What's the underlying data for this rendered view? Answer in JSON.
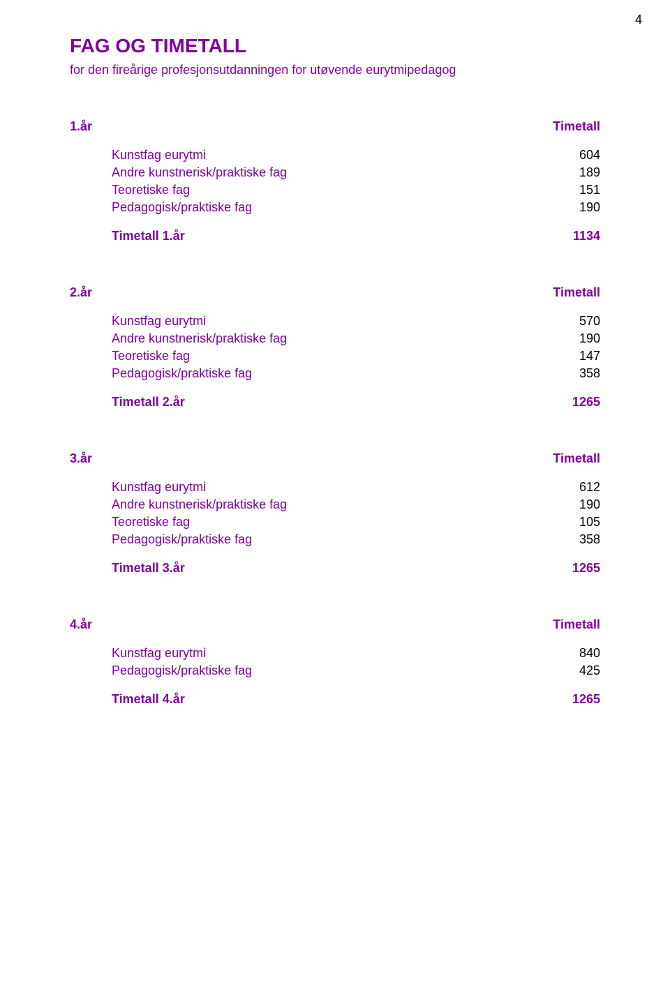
{
  "page_number": "4",
  "title": "FAG OG TIMETALL",
  "subtitle": "for den fireårige profesjonsutdanningen for utøvende eurytmipedagog",
  "colors": {
    "heading": "#8000a0",
    "label": "#8000a0",
    "value": "#000000",
    "background": "#ffffff"
  },
  "typography": {
    "title_fontsize": 28,
    "subtitle_fontsize": 18,
    "body_fontsize": 18,
    "font_family": "Arial"
  },
  "sections": [
    {
      "year_label": "1.år",
      "year_value": "Timetall",
      "items": [
        {
          "label": "Kunstfag eurytmi",
          "value": "604"
        },
        {
          "label": "Andre kunstnerisk/praktiske fag",
          "value": "189"
        },
        {
          "label": "Teoretiske fag",
          "value": "151"
        },
        {
          "label": "Pedagogisk/praktiske fag",
          "value": "190"
        }
      ],
      "total_label": "Timetall 1.år",
      "total_value": "1134"
    },
    {
      "year_label": "2.år",
      "year_value": "Timetall",
      "items": [
        {
          "label": "Kunstfag eurytmi",
          "value": "570"
        },
        {
          "label": "Andre kunstnerisk/praktiske fag",
          "value": "190"
        },
        {
          "label": "Teoretiske fag",
          "value": "147"
        },
        {
          "label": "Pedagogisk/praktiske fag",
          "value": "358"
        }
      ],
      "total_label": "Timetall 2.år",
      "total_value": "1265"
    },
    {
      "year_label": "3.år",
      "year_value": "Timetall",
      "items": [
        {
          "label": "Kunstfag eurytmi",
          "value": "612"
        },
        {
          "label": "Andre kunstnerisk/praktiske fag",
          "value": "190"
        },
        {
          "label": "Teoretiske fag",
          "value": "105"
        },
        {
          "label": "Pedagogisk/praktiske fag",
          "value": "358"
        }
      ],
      "total_label": "Timetall 3.år",
      "total_value": "1265"
    },
    {
      "year_label": "4.år",
      "year_value": "Timetall",
      "items": [
        {
          "label": "Kunstfag eurytmi",
          "value": "840"
        },
        {
          "label": "Pedagogisk/praktiske fag",
          "value": "425"
        }
      ],
      "total_label": "Timetall 4.år",
      "total_value": "1265"
    }
  ]
}
